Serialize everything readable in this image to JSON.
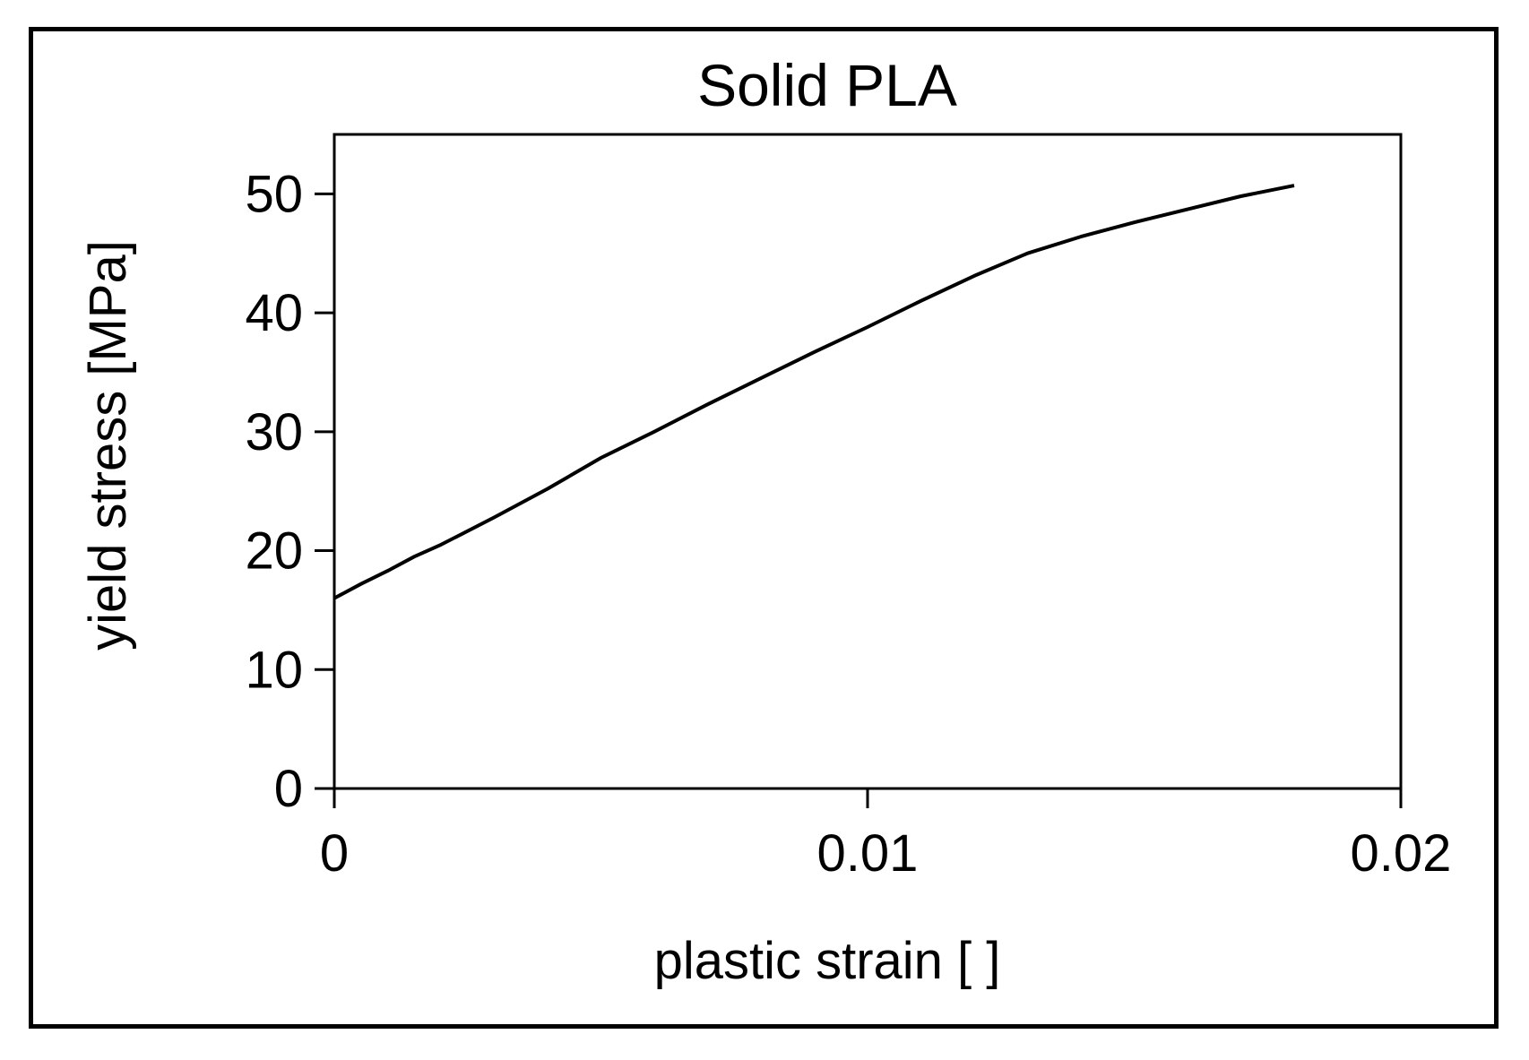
{
  "chart_data": {
    "type": "line",
    "title": "Solid PLA",
    "xlabel": "plastic strain [ ]",
    "ylabel": "yield stress [MPa]",
    "xlim": [
      0,
      0.02
    ],
    "ylim": [
      0,
      55
    ],
    "x_ticks": [
      0,
      0.01,
      0.02
    ],
    "x_tick_labels": [
      "0",
      "0.01",
      "0.02"
    ],
    "y_ticks": [
      0,
      10,
      20,
      30,
      40,
      50
    ],
    "y_tick_labels": [
      "0",
      "10",
      "20",
      "30",
      "40",
      "50"
    ],
    "grid": false,
    "legend": "none",
    "line_color": "#000000",
    "series": [
      {
        "x": [
          0,
          0.0005,
          0.001,
          0.0015,
          0.002,
          0.003,
          0.004,
          0.005,
          0.006,
          0.007,
          0.008,
          0.009,
          0.01,
          0.011,
          0.012,
          0.013,
          0.014,
          0.015,
          0.016,
          0.017,
          0.018
        ],
        "y": [
          16,
          17.2,
          18.3,
          19.5,
          20.5,
          22.8,
          25.2,
          27.8,
          30,
          32.3,
          34.5,
          36.7,
          38.8,
          41,
          43.1,
          45,
          46.4,
          47.6,
          48.7,
          49.8,
          50.7
        ]
      }
    ]
  }
}
